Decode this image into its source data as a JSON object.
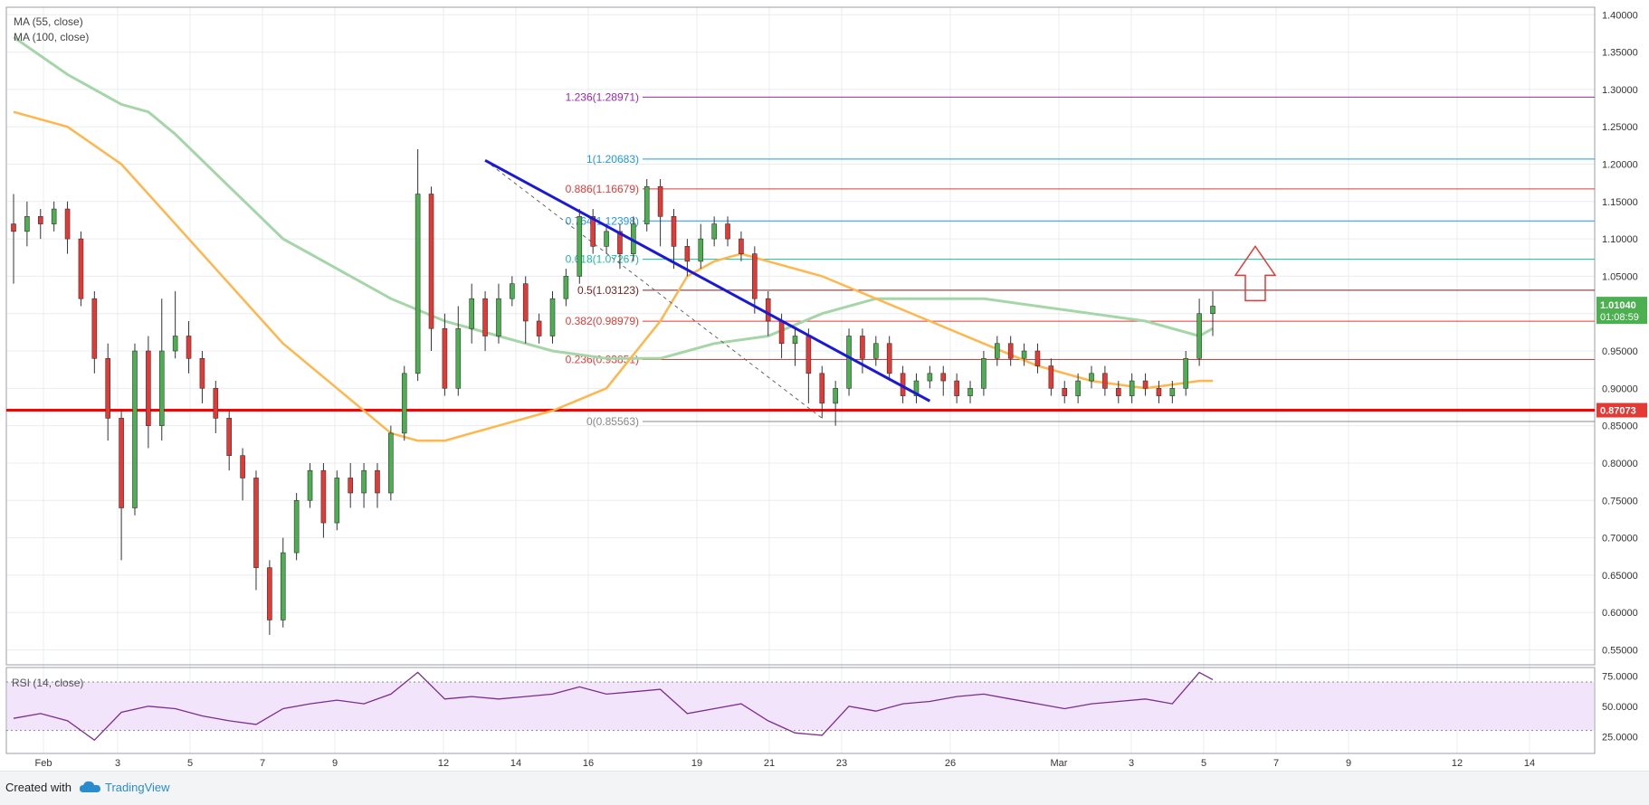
{
  "indicators": {
    "ma55": "MA (55, close)",
    "ma100": "MA (100, close)",
    "rsi": "RSI (14, close)"
  },
  "footer": {
    "created_with": "Created with",
    "brand": "TradingView"
  },
  "colors": {
    "grid": "#e9ecf1",
    "up": "#4caf50",
    "down": "#e53935",
    "wick": "#333333",
    "ma55": "#ffb74d",
    "ma100": "#a5d6a7",
    "trend": "#1a1ad6",
    "support": "#ff0000",
    "arrow": "#e53935",
    "rsi_fill": "#f1e4fb",
    "rsi_line": "#7b2d8e"
  },
  "chart_data": {
    "type": "candlestick",
    "y_range": [
      0.53,
      1.41
    ],
    "y_ticks": [
      "1.40000",
      "1.35000",
      "1.30000",
      "1.25000",
      "1.20000",
      "1.15000",
      "1.10000",
      "1.05000",
      "1.00000",
      "0.95000",
      "0.90000",
      "0.85000",
      "0.80000",
      "0.75000",
      "0.70000",
      "0.65000",
      "0.60000",
      "0.55000"
    ],
    "x_ticks": [
      "Feb",
      "3",
      "5",
      "7",
      "9",
      "12",
      "14",
      "16",
      "19",
      "21",
      "23",
      "26",
      "Mar",
      "3",
      "5",
      "7",
      "9",
      "12",
      "14"
    ],
    "fib_levels": [
      {
        "label": "1.236(1.28971)",
        "value": 1.28971,
        "color": "#9c27b0"
      },
      {
        "label": "1(1.20683)",
        "value": 1.20683,
        "color": "#2196f3"
      },
      {
        "label": "0.886(1.16679)",
        "value": 1.16679,
        "color": "#e53935"
      },
      {
        "label": "0.764(1.12398)",
        "value": 1.12398,
        "color": "#2196f3"
      },
      {
        "label": "0.618(1.07267)",
        "value": 1.07267,
        "color": "#1abc9c"
      },
      {
        "label": "0.5(1.03123)",
        "value": 1.03123,
        "color": "#7b2020"
      },
      {
        "label": "0.382(0.98979)",
        "value": 0.98979,
        "color": "#e53935"
      },
      {
        "label": "0.236(0.93851)",
        "value": 0.93851,
        "color": "#e53935"
      },
      {
        "label": "0(0.85563)",
        "value": 0.85563,
        "color": "#888888"
      }
    ],
    "support_level": {
      "value": 0.87073,
      "label": "0.87073"
    },
    "last_price": {
      "value": 1.0104,
      "label": "1.01040",
      "countdown": "01:08:59"
    },
    "trendline": {
      "from": [
        17.5,
        1.205
      ],
      "to": [
        34.0,
        0.883
      ]
    },
    "candles": [
      [
        0.0,
        1.12,
        1.11,
        1.16,
        1.04
      ],
      [
        0.5,
        1.11,
        1.13,
        1.15,
        1.09
      ],
      [
        1.0,
        1.13,
        1.12,
        1.14,
        1.1
      ],
      [
        1.5,
        1.12,
        1.14,
        1.15,
        1.11
      ],
      [
        2.0,
        1.14,
        1.1,
        1.15,
        1.08
      ],
      [
        2.5,
        1.1,
        1.02,
        1.11,
        1.01
      ],
      [
        3.0,
        1.02,
        0.94,
        1.03,
        0.92
      ],
      [
        3.5,
        0.94,
        0.86,
        0.96,
        0.83
      ],
      [
        4.0,
        0.86,
        0.74,
        0.87,
        0.67
      ],
      [
        4.5,
        0.74,
        0.95,
        0.96,
        0.73
      ],
      [
        5.0,
        0.95,
        0.85,
        0.97,
        0.82
      ],
      [
        5.5,
        0.85,
        0.95,
        1.02,
        0.83
      ],
      [
        6.0,
        0.95,
        0.97,
        1.03,
        0.94
      ],
      [
        6.5,
        0.97,
        0.94,
        0.99,
        0.92
      ],
      [
        7.0,
        0.94,
        0.9,
        0.95,
        0.88
      ],
      [
        7.5,
        0.9,
        0.86,
        0.91,
        0.84
      ],
      [
        8.0,
        0.86,
        0.81,
        0.87,
        0.79
      ],
      [
        8.5,
        0.81,
        0.78,
        0.82,
        0.75
      ],
      [
        9.0,
        0.78,
        0.66,
        0.79,
        0.63
      ],
      [
        9.5,
        0.66,
        0.59,
        0.67,
        0.57
      ],
      [
        10.0,
        0.59,
        0.68,
        0.7,
        0.58
      ],
      [
        10.5,
        0.68,
        0.75,
        0.76,
        0.67
      ],
      [
        11.0,
        0.75,
        0.79,
        0.8,
        0.74
      ],
      [
        11.5,
        0.79,
        0.72,
        0.8,
        0.7
      ],
      [
        12.0,
        0.72,
        0.78,
        0.79,
        0.71
      ],
      [
        12.5,
        0.78,
        0.76,
        0.8,
        0.74
      ],
      [
        13.0,
        0.76,
        0.79,
        0.8,
        0.74
      ],
      [
        13.5,
        0.79,
        0.76,
        0.8,
        0.74
      ],
      [
        14.0,
        0.76,
        0.84,
        0.85,
        0.75
      ],
      [
        14.5,
        0.84,
        0.92,
        0.93,
        0.83
      ],
      [
        15.0,
        0.92,
        1.16,
        1.22,
        0.91
      ],
      [
        15.5,
        1.16,
        0.98,
        1.17,
        0.95
      ],
      [
        16.0,
        0.98,
        0.9,
        1.0,
        0.89
      ],
      [
        16.5,
        0.9,
        0.98,
        1.01,
        0.89
      ],
      [
        17.0,
        0.98,
        1.02,
        1.04,
        0.96
      ],
      [
        17.5,
        1.02,
        0.97,
        1.03,
        0.95
      ],
      [
        18.0,
        0.97,
        1.02,
        1.04,
        0.96
      ],
      [
        18.5,
        1.02,
        1.04,
        1.05,
        1.01
      ],
      [
        19.0,
        1.04,
        0.99,
        1.05,
        0.96
      ],
      [
        19.5,
        0.99,
        0.97,
        1.0,
        0.96
      ],
      [
        20.0,
        0.97,
        1.02,
        1.03,
        0.96
      ],
      [
        20.5,
        1.02,
        1.05,
        1.06,
        1.01
      ],
      [
        21.0,
        1.05,
        1.13,
        1.14,
        1.04
      ],
      [
        21.5,
        1.13,
        1.09,
        1.14,
        1.08
      ],
      [
        22.0,
        1.09,
        1.11,
        1.12,
        1.08
      ],
      [
        22.5,
        1.11,
        1.08,
        1.12,
        1.06
      ],
      [
        23.0,
        1.08,
        1.12,
        1.13,
        1.07
      ],
      [
        23.5,
        1.12,
        1.17,
        1.18,
        1.11
      ],
      [
        24.0,
        1.17,
        1.13,
        1.18,
        1.09
      ],
      [
        24.5,
        1.13,
        1.09,
        1.14,
        1.06
      ],
      [
        25.0,
        1.09,
        1.07,
        1.1,
        1.05
      ],
      [
        25.5,
        1.07,
        1.1,
        1.12,
        1.06
      ],
      [
        26.0,
        1.1,
        1.12,
        1.13,
        1.09
      ],
      [
        26.5,
        1.12,
        1.1,
        1.13,
        1.09
      ],
      [
        27.0,
        1.1,
        1.08,
        1.11,
        1.07
      ],
      [
        27.5,
        1.08,
        1.02,
        1.09,
        1.0
      ],
      [
        28.0,
        1.02,
        0.99,
        1.03,
        0.97
      ],
      [
        28.5,
        0.99,
        0.96,
        1.0,
        0.94
      ],
      [
        29.0,
        0.96,
        0.97,
        0.98,
        0.93
      ],
      [
        29.5,
        0.97,
        0.92,
        0.98,
        0.88
      ],
      [
        30.0,
        0.92,
        0.88,
        0.93,
        0.86
      ],
      [
        30.5,
        0.88,
        0.9,
        0.91,
        0.85
      ],
      [
        31.0,
        0.9,
        0.97,
        0.98,
        0.89
      ],
      [
        31.5,
        0.97,
        0.94,
        0.98,
        0.92
      ],
      [
        32.0,
        0.94,
        0.96,
        0.97,
        0.93
      ],
      [
        32.5,
        0.96,
        0.92,
        0.97,
        0.91
      ],
      [
        33.0,
        0.92,
        0.89,
        0.93,
        0.88
      ],
      [
        33.5,
        0.89,
        0.91,
        0.92,
        0.88
      ],
      [
        34.0,
        0.91,
        0.92,
        0.93,
        0.9
      ],
      [
        34.5,
        0.92,
        0.91,
        0.93,
        0.89
      ],
      [
        35.0,
        0.91,
        0.89,
        0.92,
        0.88
      ],
      [
        35.5,
        0.89,
        0.9,
        0.91,
        0.88
      ],
      [
        36.0,
        0.9,
        0.94,
        0.95,
        0.89
      ],
      [
        36.5,
        0.94,
        0.96,
        0.97,
        0.93
      ],
      [
        37.0,
        0.96,
        0.94,
        0.97,
        0.93
      ],
      [
        37.5,
        0.94,
        0.95,
        0.96,
        0.93
      ],
      [
        38.0,
        0.95,
        0.93,
        0.96,
        0.92
      ],
      [
        38.5,
        0.93,
        0.9,
        0.94,
        0.89
      ],
      [
        39.0,
        0.9,
        0.89,
        0.91,
        0.88
      ],
      [
        39.5,
        0.89,
        0.91,
        0.92,
        0.88
      ],
      [
        40.0,
        0.91,
        0.92,
        0.93,
        0.9
      ],
      [
        40.5,
        0.92,
        0.9,
        0.93,
        0.89
      ],
      [
        41.0,
        0.9,
        0.89,
        0.91,
        0.88
      ],
      [
        41.5,
        0.89,
        0.91,
        0.92,
        0.88
      ],
      [
        42.0,
        0.91,
        0.9,
        0.92,
        0.89
      ],
      [
        42.5,
        0.9,
        0.89,
        0.91,
        0.88
      ],
      [
        43.0,
        0.89,
        0.9,
        0.91,
        0.88
      ],
      [
        43.5,
        0.9,
        0.94,
        0.95,
        0.89
      ],
      [
        44.0,
        0.94,
        1.0,
        1.02,
        0.93
      ],
      [
        44.5,
        1.0,
        1.01,
        1.03,
        0.97
      ]
    ],
    "candle_x_range": [
      0,
      44.5
    ],
    "ma55": [
      [
        0,
        1.27
      ],
      [
        2,
        1.25
      ],
      [
        4,
        1.2
      ],
      [
        6,
        1.12
      ],
      [
        8,
        1.04
      ],
      [
        10,
        0.96
      ],
      [
        12,
        0.9
      ],
      [
        14,
        0.84
      ],
      [
        15,
        0.83
      ],
      [
        16,
        0.83
      ],
      [
        18,
        0.85
      ],
      [
        20,
        0.87
      ],
      [
        22,
        0.9
      ],
      [
        24,
        0.99
      ],
      [
        25,
        1.05
      ],
      [
        26,
        1.07
      ],
      [
        27,
        1.08
      ],
      [
        28,
        1.07
      ],
      [
        30,
        1.05
      ],
      [
        32,
        1.02
      ],
      [
        34,
        0.99
      ],
      [
        36,
        0.96
      ],
      [
        38,
        0.93
      ],
      [
        40,
        0.91
      ],
      [
        42,
        0.9
      ],
      [
        44,
        0.91
      ],
      [
        44.5,
        0.91
      ]
    ],
    "ma100": [
      [
        0,
        1.37
      ],
      [
        2,
        1.32
      ],
      [
        4,
        1.28
      ],
      [
        5,
        1.27
      ],
      [
        6,
        1.24
      ],
      [
        8,
        1.17
      ],
      [
        10,
        1.1
      ],
      [
        12,
        1.06
      ],
      [
        14,
        1.02
      ],
      [
        16,
        0.99
      ],
      [
        18,
        0.97
      ],
      [
        20,
        0.95
      ],
      [
        22,
        0.94
      ],
      [
        24,
        0.94
      ],
      [
        26,
        0.96
      ],
      [
        28,
        0.97
      ],
      [
        30,
        1.0
      ],
      [
        32,
        1.02
      ],
      [
        34,
        1.02
      ],
      [
        36,
        1.02
      ],
      [
        38,
        1.01
      ],
      [
        40,
        1.0
      ],
      [
        42,
        0.99
      ],
      [
        44,
        0.97
      ],
      [
        44.5,
        0.98
      ]
    ],
    "rsi": {
      "range": [
        14,
        82
      ],
      "levels": [
        70,
        30
      ],
      "ticks": [
        "75.0000",
        "50.0000",
        "25.0000"
      ],
      "values": [
        [
          0,
          40
        ],
        [
          1,
          44
        ],
        [
          2,
          38
        ],
        [
          3,
          22
        ],
        [
          4,
          45
        ],
        [
          5,
          50
        ],
        [
          6,
          48
        ],
        [
          7,
          42
        ],
        [
          8,
          38
        ],
        [
          9,
          35
        ],
        [
          10,
          48
        ],
        [
          11,
          52
        ],
        [
          12,
          55
        ],
        [
          13,
          52
        ],
        [
          14,
          60
        ],
        [
          15,
          78
        ],
        [
          16,
          56
        ],
        [
          17,
          58
        ],
        [
          18,
          56
        ],
        [
          19,
          58
        ],
        [
          20,
          60
        ],
        [
          21,
          66
        ],
        [
          22,
          60
        ],
        [
          23,
          62
        ],
        [
          24,
          64
        ],
        [
          25,
          44
        ],
        [
          26,
          48
        ],
        [
          27,
          52
        ],
        [
          28,
          38
        ],
        [
          29,
          28
        ],
        [
          30,
          26
        ],
        [
          31,
          50
        ],
        [
          32,
          46
        ],
        [
          33,
          52
        ],
        [
          34,
          54
        ],
        [
          35,
          58
        ],
        [
          36,
          60
        ],
        [
          37,
          56
        ],
        [
          38,
          52
        ],
        [
          39,
          48
        ],
        [
          40,
          52
        ],
        [
          41,
          54
        ],
        [
          42,
          56
        ],
        [
          43,
          52
        ],
        [
          44,
          78
        ],
        [
          44.5,
          72
        ]
      ]
    }
  }
}
